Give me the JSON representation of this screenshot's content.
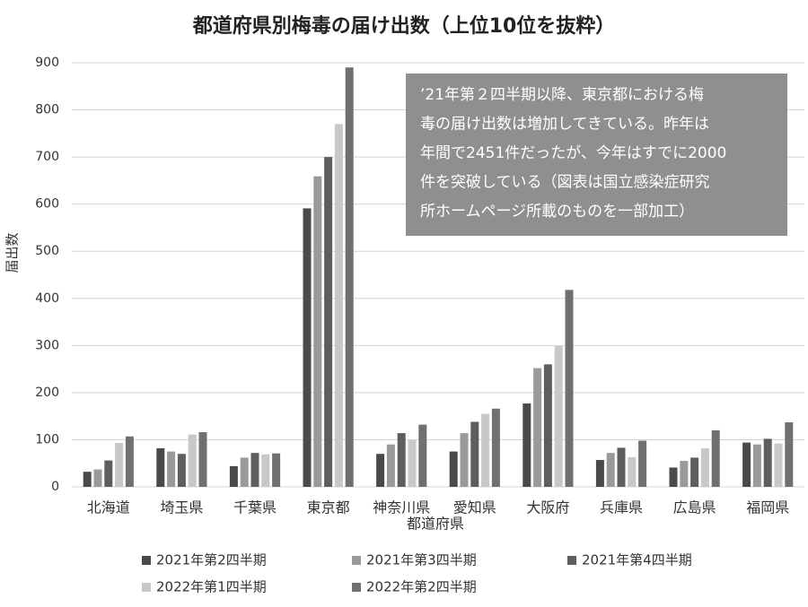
{
  "chart_data": {
    "type": "bar",
    "title": "都道府県別梅毒の届け出数（上位10位を抜粋）",
    "y_label": "届出数",
    "x_label": "都道府県",
    "annotation": [
      "’21年第２四半期以降、東京都における梅",
      "毒の届け出数は増加してきている。昨年は",
      "年間で2451件だったが、今年はすでに2000",
      "件を突破している（図表は国立感染症研究",
      "所ホームページ所載のものを一部加工）"
    ],
    "categories": [
      "北海道",
      "埼玉県",
      "千葉県",
      "東京都",
      "神奈川県",
      "愛知県",
      "大阪府",
      "兵庫県",
      "広島県",
      "福岡県"
    ],
    "series": [
      {
        "name": "2021年第2四半期",
        "color": "#4a4a4a",
        "values": [
          32,
          82,
          44,
          591,
          70,
          75,
          177,
          57,
          41,
          94
        ]
      },
      {
        "name": "2021年第3四半期",
        "color": "#9a9a9a",
        "values": [
          37,
          75,
          62,
          659,
          90,
          114,
          252,
          72,
          55,
          90
        ]
      },
      {
        "name": "2021年第4四半期",
        "color": "#5e5e5e",
        "values": [
          56,
          70,
          72,
          700,
          114,
          138,
          260,
          83,
          62,
          102
        ]
      },
      {
        "name": "2022年第1四半期",
        "color": "#c8c8c8",
        "values": [
          93,
          111,
          69,
          770,
          99,
          155,
          299,
          63,
          82,
          92
        ]
      },
      {
        "name": "2022年第2四半期",
        "color": "#707070",
        "values": [
          107,
          116,
          71,
          890,
          132,
          166,
          418,
          98,
          120,
          137
        ]
      }
    ],
    "ylim": [
      0,
      900
    ],
    "yticks": [
      0,
      100,
      200,
      300,
      400,
      500,
      600,
      700,
      800,
      900
    ],
    "grid": true
  }
}
